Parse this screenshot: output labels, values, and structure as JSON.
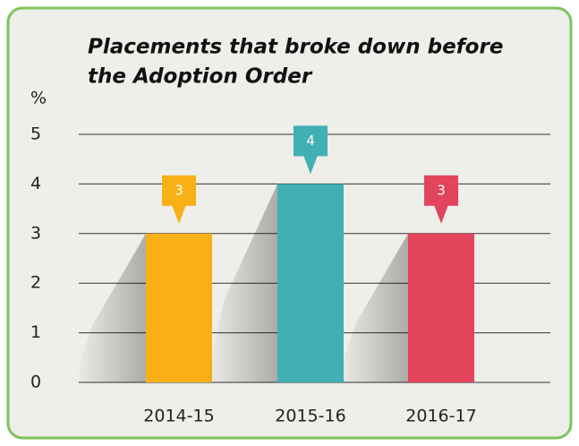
{
  "chart_data": {
    "type": "bar",
    "title": [
      "Placements that broke down before",
      "the Adoption Order"
    ],
    "y_label": "%",
    "categories": [
      "2014-15",
      "2015-16",
      "2016-17"
    ],
    "values": [
      3,
      4,
      3
    ],
    "colors": [
      "#f8b016",
      "#41b0b4",
      "#e2445c"
    ],
    "ylim": [
      0,
      5
    ],
    "yticks": [
      0,
      1,
      2,
      3,
      4,
      5
    ],
    "grid": true
  }
}
